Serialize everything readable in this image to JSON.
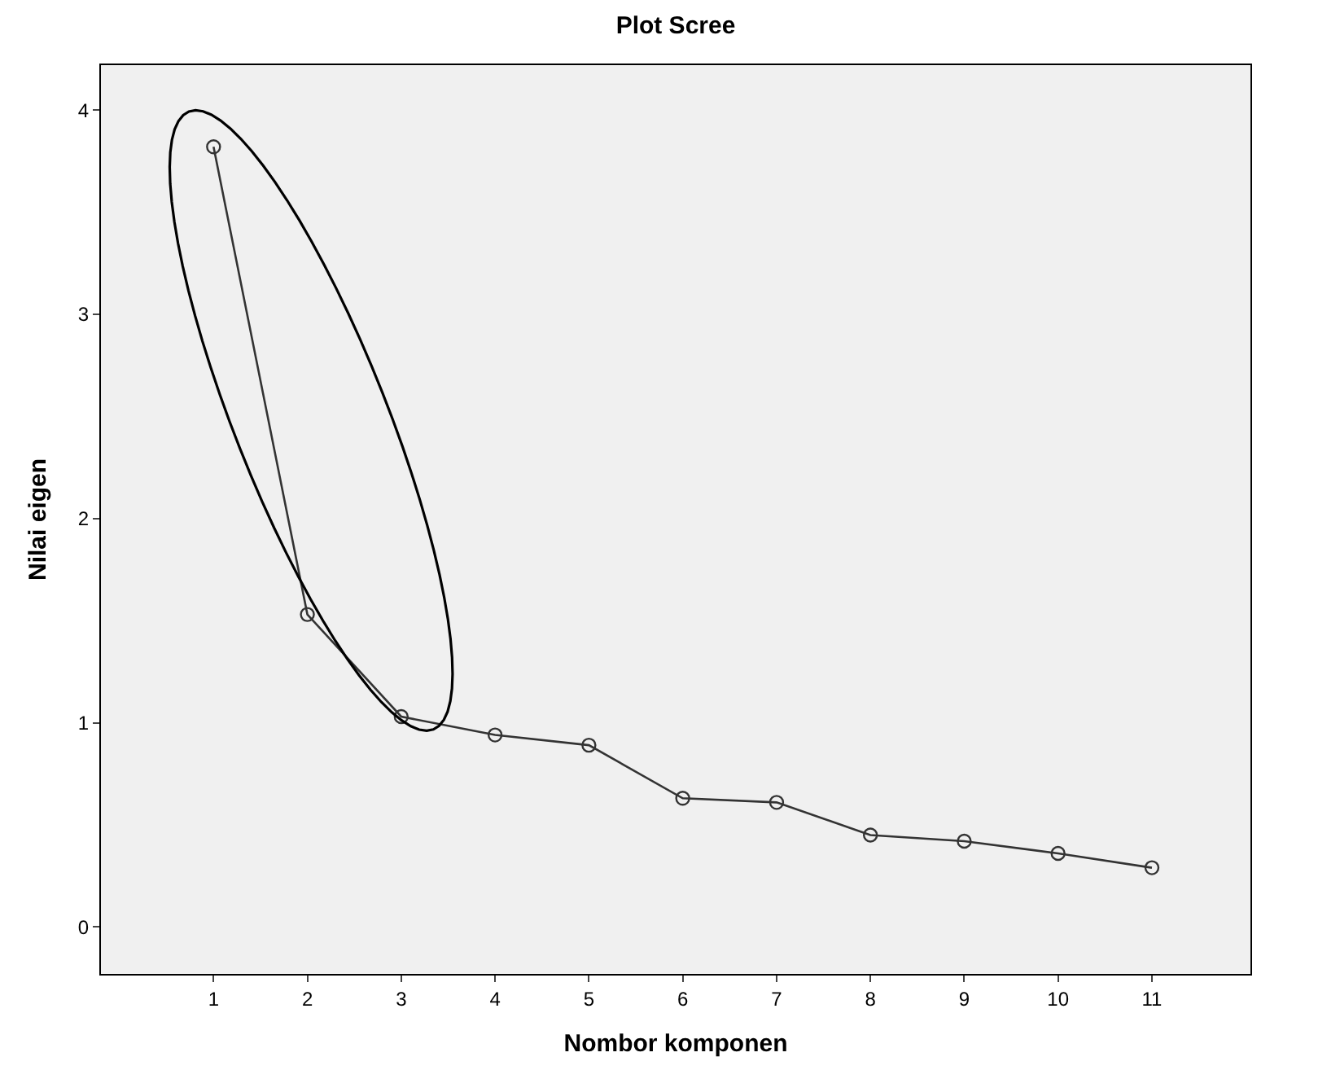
{
  "chart_data": {
    "type": "line",
    "title": "Plot Scree",
    "xlabel": "Nombor komponen",
    "ylabel": "Nilai eigen",
    "x": [
      1,
      2,
      3,
      4,
      5,
      6,
      7,
      8,
      9,
      10,
      11
    ],
    "series": [
      {
        "color": "#333333",
        "values": [
          3.82,
          1.53,
          1.03,
          0.94,
          0.89,
          0.63,
          0.61,
          0.45,
          0.42,
          0.36,
          0.29
        ]
      }
    ],
    "xlim": [
      -0.2,
      12.05
    ],
    "xticks": [
      1,
      2,
      3,
      4,
      5,
      6,
      7,
      8,
      9,
      10,
      11
    ],
    "ylim": [
      -0.23,
      4.22
    ],
    "yticks": [
      0,
      1,
      2,
      3,
      4
    ],
    "grid": false,
    "legend": false,
    "marker": "circle",
    "line_style": "solid"
  }
}
